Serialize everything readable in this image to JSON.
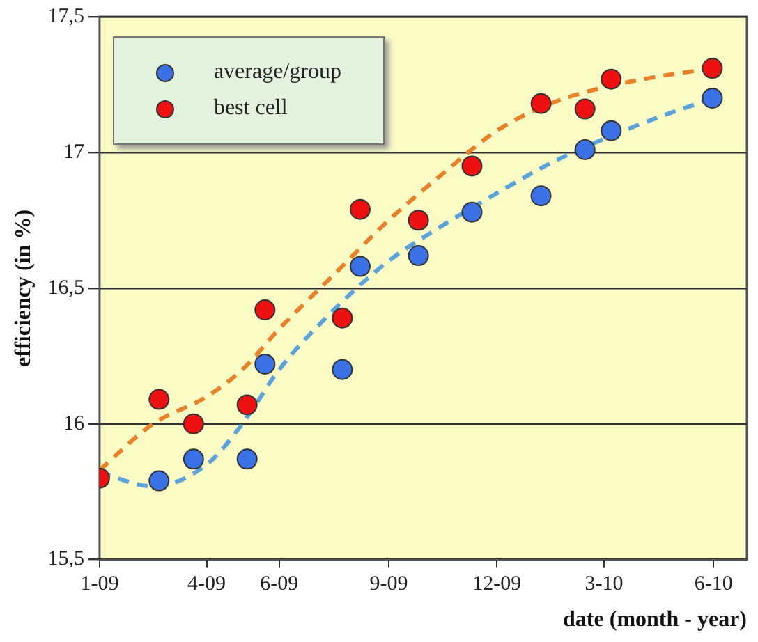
{
  "chart_data": {
    "type": "scatter",
    "xlabel": "date (month - year)",
    "ylabel": "efficiency (in %)",
    "xlim": [
      "2009-01-01",
      "2010-06-29"
    ],
    "xticks": [
      {
        "value": "2009-01",
        "label": "1-09"
      },
      {
        "value": "2009-04",
        "label": "4-09"
      },
      {
        "value": "2009-06",
        "label": "6-09"
      },
      {
        "value": "2009-09",
        "label": "9-09"
      },
      {
        "value": "2009-12",
        "label": "12-09"
      },
      {
        "value": "2010-03",
        "label": "3-10"
      },
      {
        "value": "2010-06",
        "label": "6-10"
      }
    ],
    "ylim": [
      15.5,
      17.5
    ],
    "yticks": [
      {
        "value": 15.5,
        "label": "15,5"
      },
      16,
      {
        "value": 16.5,
        "label": "16,5"
      },
      17,
      {
        "value": 17.5,
        "label": "17,5"
      }
    ],
    "grid": "y",
    "legend": "top left",
    "marker": "circle",
    "series": [
      {
        "name": "average/group",
        "color": "#3a72e6",
        "x": [
          "2009-02-20",
          "2009-03-21",
          "2009-05-05",
          "2009-05-20",
          "2009-07-24",
          "2009-08-08",
          "2009-09-26",
          "2009-11-10",
          "2010-01-07",
          "2010-02-13",
          "2010-03-07",
          "2010-05-31"
        ],
        "values": [
          15.79,
          15.87,
          15.87,
          16.22,
          16.2,
          16.58,
          16.62,
          16.78,
          16.84,
          17.01,
          17.08,
          17.2
        ]
      },
      {
        "name": "best cell",
        "color": "#ee1111",
        "x": [
          "2009-01-01",
          "2009-02-20",
          "2009-03-21",
          "2009-05-05",
          "2009-05-20",
          "2009-07-24",
          "2009-08-08",
          "2009-09-26",
          "2009-11-10",
          "2010-01-07",
          "2010-02-13",
          "2010-03-07",
          "2010-05-31"
        ],
        "values": [
          15.8,
          16.09,
          16.0,
          16.07,
          16.42,
          16.39,
          16.79,
          16.75,
          16.95,
          17.18,
          17.16,
          17.27,
          17.31
        ]
      },
      {
        "type": "line",
        "color": "#e8822a",
        "line_style": "dashed",
        "marker": "none",
        "x": [
          "2009-01-01",
          "2009-02-15",
          "2009-04-01",
          "2009-05-01",
          "2009-06-01",
          "2009-07-17",
          "2009-09-01",
          "2009-10-16",
          "2009-12-01",
          "2010-01-15",
          "2010-03-01",
          "2010-04-16",
          "2010-06-01"
        ],
        "values": [
          15.83,
          16.0,
          16.1,
          16.2,
          16.35,
          16.55,
          16.75,
          16.92,
          17.08,
          17.18,
          17.24,
          17.28,
          17.31
        ]
      },
      {
        "type": "line",
        "color": "#5ba3d9",
        "line_style": "dashed",
        "marker": "none",
        "x": [
          "2009-01-01",
          "2009-02-15",
          "2009-04-01",
          "2009-05-01",
          "2009-06-01",
          "2009-07-17",
          "2009-09-01",
          "2009-10-16",
          "2009-12-01",
          "2010-01-15",
          "2010-03-01",
          "2010-04-16",
          "2010-06-01"
        ],
        "values": [
          15.82,
          15.77,
          15.85,
          16.0,
          16.2,
          16.42,
          16.6,
          16.73,
          16.85,
          16.96,
          17.05,
          17.13,
          17.2
        ]
      }
    ]
  }
}
